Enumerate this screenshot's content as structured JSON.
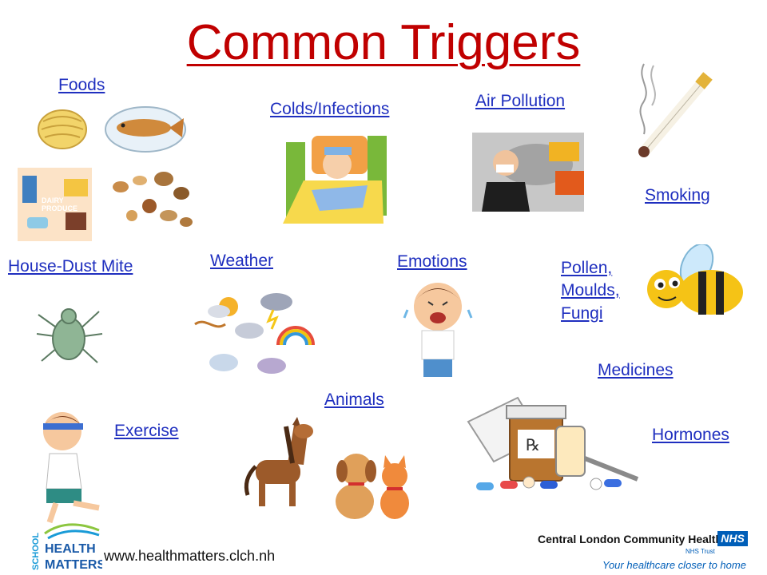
{
  "title": "Common Triggers",
  "triggers": {
    "foods": "Foods",
    "colds": "Colds/Infections",
    "air_pollution": "Air Pollution",
    "smoking": "Smoking",
    "house_dust_mite": "House-Dust Mite",
    "weather": "Weather",
    "emotions": "Emotions",
    "pollen": [
      "Pollen,",
      "Moulds,",
      "Fungi"
    ],
    "medicines": "Medicines",
    "exercise": "Exercise",
    "animals": "Animals",
    "hormones": "Hormones"
  },
  "dairy_label": [
    "DAIRY",
    "PRODUCE"
  ],
  "rx_label": "℞",
  "footer": {
    "logo_school": "SCHOOL",
    "logo_health": "HEALTH",
    "logo_matters": "MATTERS",
    "url": "www.healthmatters.clch.nh",
    "org": "Central London Community Healthcare",
    "nhs": "NHS",
    "trust": "NHS Trust",
    "tagline": "Your healthcare closer to home"
  },
  "colors": {
    "title": "#c00000",
    "link": "#1f2fbf",
    "nhs_blue": "#005eb8"
  }
}
